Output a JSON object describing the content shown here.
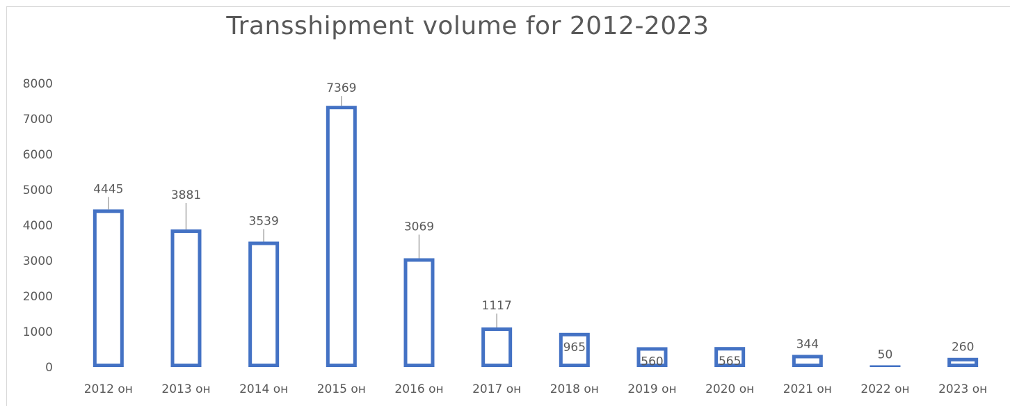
{
  "chart_data": {
    "type": "bar",
    "title": "Transshipment volume for 2012-2023",
    "categories": [
      "2012 он",
      "2013 он",
      "2014 он",
      "2015 он",
      "2016 он",
      "2017 он",
      "2018 он",
      "2019 он",
      "2020 он",
      "2021 он",
      "2022 он",
      "2023 он"
    ],
    "values": [
      4445,
      3881,
      3539,
      7369,
      3069,
      1117,
      965,
      560,
      565,
      344,
      50,
      260
    ],
    "data_labels": [
      "4445",
      "3881",
      "3539",
      "7369",
      "3069",
      "1117",
      "965",
      "560",
      "565",
      "344",
      "50",
      "260"
    ],
    "ylim": [
      0,
      8000
    ],
    "yticks": [
      0,
      1000,
      2000,
      3000,
      4000,
      5000,
      6000,
      7000,
      8000
    ],
    "ytick_labels": [
      "0",
      "1000",
      "2000",
      "3000",
      "4000",
      "5000",
      "6000",
      "7000",
      "8000"
    ],
    "xlabel": "",
    "ylabel": "",
    "grid": false,
    "legend": "none",
    "colors": {
      "bar_outline": "#4472c4",
      "text": "#595959",
      "leader": "#a6a6a6",
      "border": "#d9d9d9"
    }
  }
}
